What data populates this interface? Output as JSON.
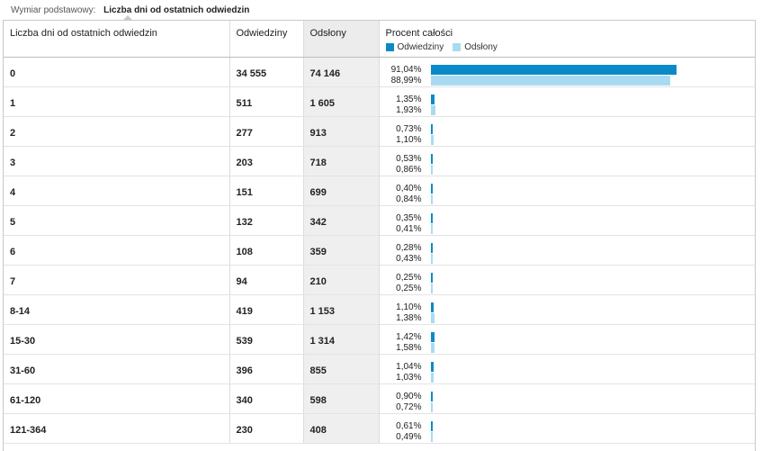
{
  "dimension": {
    "label": "Wymiar podstawowy:",
    "value": "Liczba dni od ostatnich odwiedzin"
  },
  "table": {
    "headers": {
      "dimension": "Liczba dni od ostatnich odwiedzin",
      "visits": "Odwiedziny",
      "pageviews": "Odsłony",
      "percent": "Procent całości"
    },
    "legend": {
      "visits": "Odwiedziny",
      "pageviews": "Odsłony"
    },
    "rows": [
      {
        "label": "0",
        "visits": "34 555",
        "pageviews": "74 146",
        "visits_pct": "91,04%",
        "pageviews_pct": "88,99%",
        "visits_share": 0.9104,
        "pageviews_share": 0.8899
      },
      {
        "label": "1",
        "visits": "511",
        "pageviews": "1 605",
        "visits_pct": "1,35%",
        "pageviews_pct": "1,93%",
        "visits_share": 0.0135,
        "pageviews_share": 0.0193
      },
      {
        "label": "2",
        "visits": "277",
        "pageviews": "913",
        "visits_pct": "0,73%",
        "pageviews_pct": "1,10%",
        "visits_share": 0.0073,
        "pageviews_share": 0.011
      },
      {
        "label": "3",
        "visits": "203",
        "pageviews": "718",
        "visits_pct": "0,53%",
        "pageviews_pct": "0,86%",
        "visits_share": 0.0053,
        "pageviews_share": 0.0086
      },
      {
        "label": "4",
        "visits": "151",
        "pageviews": "699",
        "visits_pct": "0,40%",
        "pageviews_pct": "0,84%",
        "visits_share": 0.004,
        "pageviews_share": 0.0084
      },
      {
        "label": "5",
        "visits": "132",
        "pageviews": "342",
        "visits_pct": "0,35%",
        "pageviews_pct": "0,41%",
        "visits_share": 0.0035,
        "pageviews_share": 0.0041
      },
      {
        "label": "6",
        "visits": "108",
        "pageviews": "359",
        "visits_pct": "0,28%",
        "pageviews_pct": "0,43%",
        "visits_share": 0.0028,
        "pageviews_share": 0.0043
      },
      {
        "label": "7",
        "visits": "94",
        "pageviews": "210",
        "visits_pct": "0,25%",
        "pageviews_pct": "0,25%",
        "visits_share": 0.0025,
        "pageviews_share": 0.0025
      },
      {
        "label": "8-14",
        "visits": "419",
        "pageviews": "1 153",
        "visits_pct": "1,10%",
        "pageviews_pct": "1,38%",
        "visits_share": 0.011,
        "pageviews_share": 0.0138
      },
      {
        "label": "15-30",
        "visits": "539",
        "pageviews": "1 314",
        "visits_pct": "1,42%",
        "pageviews_pct": "1,58%",
        "visits_share": 0.0142,
        "pageviews_share": 0.0158
      },
      {
        "label": "31-60",
        "visits": "396",
        "pageviews": "855",
        "visits_pct": "1,04%",
        "pageviews_pct": "1,03%",
        "visits_share": 0.0104,
        "pageviews_share": 0.0103
      },
      {
        "label": "61-120",
        "visits": "340",
        "pageviews": "598",
        "visits_pct": "0,90%",
        "pageviews_pct": "0,72%",
        "visits_share": 0.009,
        "pageviews_share": 0.0072
      },
      {
        "label": "121-364",
        "visits": "230",
        "pageviews": "408",
        "visits_pct": "0,61%",
        "pageviews_pct": "0,49%",
        "visits_share": 0.0061,
        "pageviews_share": 0.0049
      }
    ]
  },
  "colors": {
    "visits_bar": "#0a8bc7",
    "pageviews_bar": "#a8dbf2",
    "sorted_column_bg": "#efefef"
  }
}
